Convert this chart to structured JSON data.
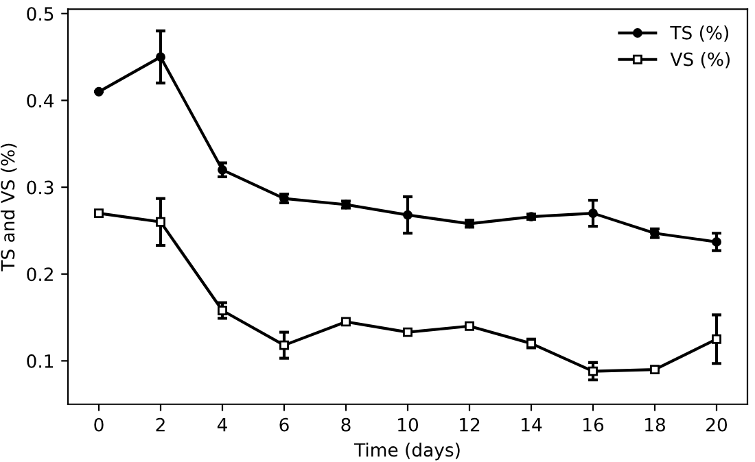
{
  "chart_data": {
    "type": "line",
    "xlabel": "Time (days)",
    "ylabel": "TS and VS (%)",
    "x": [
      0,
      2,
      4,
      6,
      8,
      10,
      12,
      14,
      16,
      18,
      20
    ],
    "series": [
      {
        "name": "TS (%)",
        "color": "#000000",
        "marker": "circle",
        "values": [
          0.41,
          0.45,
          0.32,
          0.287,
          0.28,
          0.268,
          0.258,
          0.266,
          0.27,
          0.247,
          0.237
        ],
        "errors": [
          null,
          0.03,
          0.008,
          0.005,
          0.004,
          0.021,
          0.004,
          0.003,
          0.015,
          0.005,
          0.01
        ]
      },
      {
        "name": "VS (%)",
        "color": "#000000",
        "marker": "square",
        "values": [
          0.27,
          0.26,
          0.158,
          0.118,
          0.145,
          0.133,
          0.14,
          0.12,
          0.088,
          0.09,
          0.125
        ],
        "errors": [
          null,
          0.027,
          0.009,
          0.015,
          null,
          null,
          null,
          0.005,
          0.01,
          null,
          0.028
        ]
      }
    ],
    "xlim": [
      -1,
      21
    ],
    "ylim": [
      0.05,
      0.505
    ],
    "xticks": [
      0,
      2,
      4,
      6,
      8,
      10,
      12,
      14,
      16,
      18,
      20
    ],
    "yticks": [
      0.1,
      0.2,
      0.3,
      0.4,
      0.5
    ],
    "legend": "top right",
    "grid": false,
    "line_style": "solid"
  }
}
